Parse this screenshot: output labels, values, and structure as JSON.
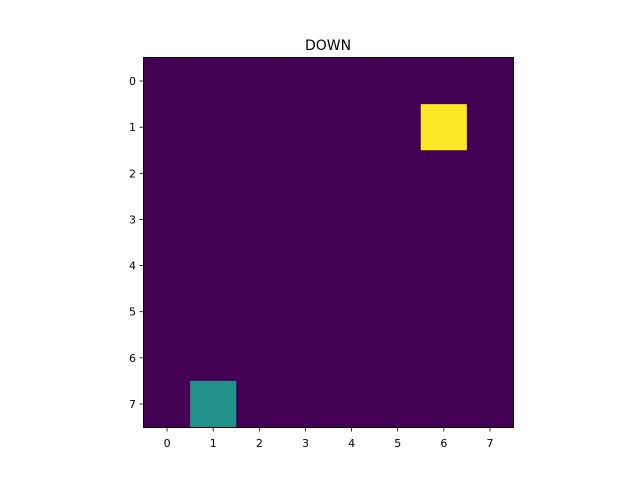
{
  "title": "DOWN",
  "grid": {
    "rows": 8,
    "cols": 8,
    "background_color": "#440154",
    "goal": {
      "row": 1,
      "col": 6,
      "color": "#fde725"
    },
    "agent": {
      "row": 7,
      "col": 1,
      "color": "#21918c"
    }
  },
  "chart_data": {
    "type": "heatmap",
    "title": "DOWN",
    "x_ticks": [
      "0",
      "1",
      "2",
      "3",
      "4",
      "5",
      "6",
      "7"
    ],
    "y_ticks": [
      "0",
      "1",
      "2",
      "3",
      "4",
      "5",
      "6",
      "7"
    ],
    "values": [
      [
        0,
        0,
        0,
        0,
        0,
        0,
        0,
        0
      ],
      [
        0,
        0,
        0,
        0,
        0,
        0,
        2,
        0
      ],
      [
        0,
        0,
        0,
        0,
        0,
        0,
        0,
        0
      ],
      [
        0,
        0,
        0,
        0,
        0,
        0,
        0,
        0
      ],
      [
        0,
        0,
        0,
        0,
        0,
        0,
        0,
        0
      ],
      [
        0,
        0,
        0,
        0,
        0,
        0,
        0,
        0
      ],
      [
        0,
        0,
        0,
        0,
        0,
        0,
        0,
        0
      ],
      [
        0,
        1,
        0,
        0,
        0,
        0,
        0,
        0
      ]
    ],
    "colormap": [
      "#440154",
      "#21918c",
      "#fde725"
    ]
  }
}
